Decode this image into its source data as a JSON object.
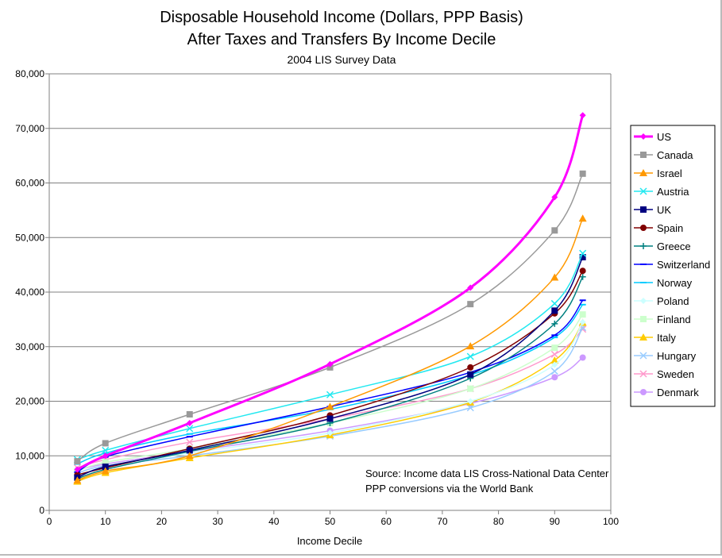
{
  "chart_data": {
    "type": "line",
    "title": "Disposable Household Income (Dollars, PPP Basis)",
    "title2": "After Taxes and Transfers By Income Decile",
    "subtitle": "2004 LIS Survey Data",
    "xlabel": "Income Decile",
    "ylabel": "",
    "xlim": [
      0,
      100
    ],
    "ylim": [
      0,
      80000
    ],
    "xticks": [
      0,
      10,
      20,
      30,
      40,
      50,
      60,
      70,
      80,
      90,
      100
    ],
    "yticks": [
      "0",
      "10,000",
      "20,000",
      "30,000",
      "40,000",
      "50,000",
      "60,000",
      "70,000",
      "80,000"
    ],
    "grid": "horizontal",
    "legend": "right",
    "annotation": [
      "Source:  Income data LIS Cross-National Data Center",
      "PPP conversions via the World Bank"
    ],
    "x": [
      5,
      10,
      25,
      50,
      75,
      90,
      95
    ],
    "series": [
      {
        "name": "US",
        "color": "#FF00FF",
        "marker": "diamond",
        "values": [
          7500,
          10000,
          16000,
          26800,
          40800,
          57400,
          72400
        ]
      },
      {
        "name": "Canada",
        "color": "#999999",
        "marker": "square",
        "values": [
          9000,
          12300,
          17600,
          26200,
          37800,
          51300,
          61700
        ]
      },
      {
        "name": "Israel",
        "color": "#FF9900",
        "marker": "triangle",
        "values": [
          5500,
          7200,
          10000,
          19000,
          30100,
          42700,
          53500
        ]
      },
      {
        "name": "Austria",
        "color": "#22E8F0",
        "marker": "x",
        "values": [
          9300,
          11000,
          15000,
          21200,
          28200,
          37900,
          47100
        ]
      },
      {
        "name": "UK",
        "color": "#000080",
        "marker": "square",
        "values": [
          6000,
          8000,
          11000,
          16800,
          24900,
          36600,
          46400
        ]
      },
      {
        "name": "Spain",
        "color": "#800000",
        "marker": "circle",
        "values": [
          6500,
          7800,
          11300,
          17400,
          26200,
          36100,
          43900
        ]
      },
      {
        "name": "Greece",
        "color": "#008080",
        "marker": "plus",
        "values": [
          5800,
          7500,
          10800,
          16000,
          24200,
          34200,
          42800
        ]
      },
      {
        "name": "Switzerland",
        "color": "#0000FF",
        "marker": "dash",
        "values": [
          7000,
          9800,
          13500,
          19000,
          25300,
          32100,
          38500
        ]
      },
      {
        "name": "Norway",
        "color": "#00CCFF",
        "marker": "dash",
        "values": [
          8500,
          10500,
          14000,
          18500,
          24800,
          31700,
          37700
        ]
      },
      {
        "name": "Poland",
        "color": "#CCFFFF",
        "marker": "diamond",
        "values": [
          6300,
          7800,
          10500,
          14200,
          20000,
          26700,
          34500
        ]
      },
      {
        "name": "Finland",
        "color": "#CCFFCC",
        "marker": "square",
        "values": [
          7200,
          8800,
          11300,
          16000,
          22300,
          29800,
          35900
        ]
      },
      {
        "name": "Italy",
        "color": "#FFCC00",
        "marker": "triangle",
        "values": [
          5300,
          6900,
          9600,
          13800,
          19800,
          27500,
          34400
        ]
      },
      {
        "name": "Hungary",
        "color": "#99CCFF",
        "marker": "x",
        "values": [
          6800,
          8200,
          10000,
          13600,
          18800,
          25500,
          33500
        ]
      },
      {
        "name": "Sweden",
        "color": "#FF99CC",
        "marker": "x",
        "values": [
          7800,
          9300,
          12500,
          16800,
          22300,
          28600,
          33200
        ]
      },
      {
        "name": "Denmark",
        "color": "#CC99FF",
        "marker": "circle",
        "values": [
          7400,
          8500,
          10800,
          14600,
          19600,
          24400,
          28000
        ]
      }
    ]
  }
}
